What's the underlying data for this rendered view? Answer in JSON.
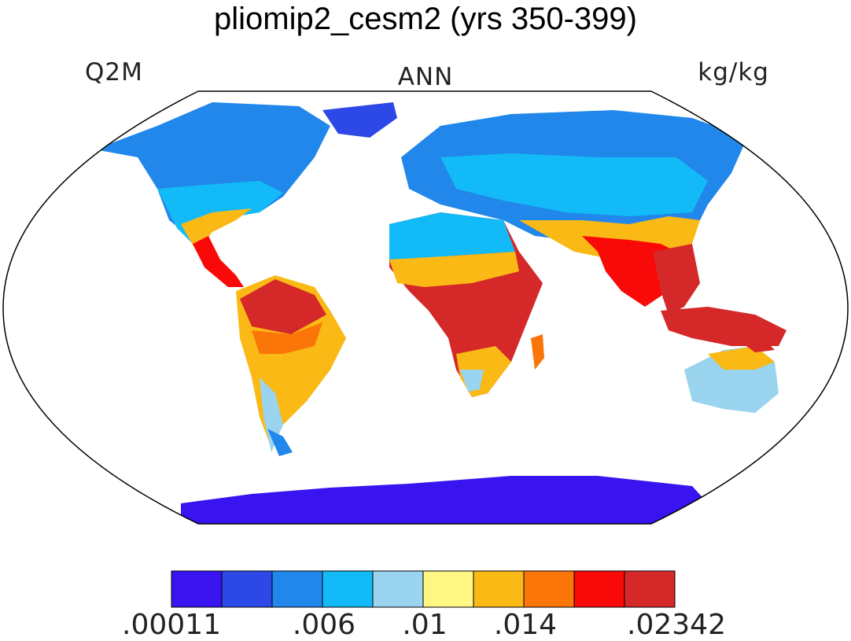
{
  "title": "pliomip2_cesm2 (yrs 350-399)",
  "variable": "Q2M",
  "season": "ANN",
  "units": "kg/kg",
  "colorbar": {
    "colors": [
      "#3a13f1",
      "#2c48e6",
      "#2187ea",
      "#13baf8",
      "#9ad4ee",
      "#fff683",
      "#fbb916",
      "#fb7608",
      "#f90907",
      "#d52828"
    ],
    "tick_labels": [
      ".00011",
      ".006",
      ".01",
      ".014",
      ".02342"
    ]
  }
}
